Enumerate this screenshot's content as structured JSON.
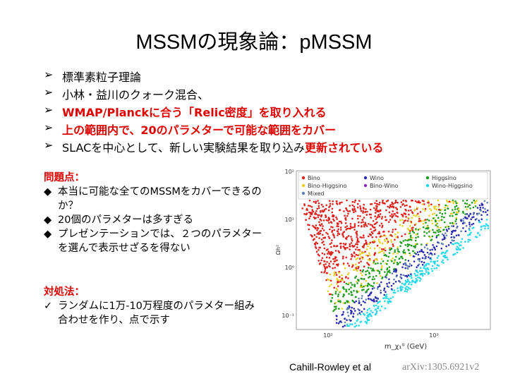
{
  "title": "MSSMの現象論：pMSSM",
  "bullets": [
    {
      "text": "標準素粒子理論",
      "color": "#000000"
    },
    {
      "text": "小林・益川のクォーク混合、",
      "color": "#000000"
    },
    {
      "text": "WMAP/Planckに合う「Relic密度」を取り入れる",
      "color": "#e00000"
    },
    {
      "text": "上の範囲内で、20のパラメターで可能な範囲をカバー",
      "color": "#e00000"
    },
    {
      "text": "SLACを中心として、新しい実験結果を取り込み",
      "color": "#000000",
      "emphasis": "更新されている",
      "emphasis_color": "#e00000"
    }
  ],
  "problems": {
    "heading": "問題点：",
    "items": [
      "本当に可能な全てのMSSMをカバーできるのか？",
      "20個のパラメターは多すぎる",
      "プレゼンテーションでは、２つのパラメターを選んで表示せざるを得ない"
    ]
  },
  "solution": {
    "heading": "対処法：",
    "items": [
      "ランダムに1万-10万程度のパラメター組み合わせを作り、点で示す"
    ]
  },
  "figure": {
    "legend": [
      {
        "name": "Bino",
        "color": "#e0201c"
      },
      {
        "name": "Wino",
        "color": "#2a2ab0"
      },
      {
        "name": "Higgsino",
        "color": "#1e9a1e"
      },
      {
        "name": "Bino-Higgsino",
        "color": "#e8d020"
      },
      {
        "name": "Bino-Wino",
        "color": "#8a2ab8"
      },
      {
        "name": "Wino-Higgsino",
        "color": "#20d8e8"
      },
      {
        "name": "Mixed",
        "color": "#6080b0"
      }
    ],
    "y_label": "Ωh²",
    "x_label": "m_χ₁⁰ (GeV)",
    "yticks": [
      "10²",
      "10¹",
      "10⁰",
      "10⁻¹"
    ],
    "xticks": [
      "10²",
      "10³"
    ]
  },
  "credit": "Cahill-Rowley et al",
  "reference": "arXiv:1305.6921v2"
}
